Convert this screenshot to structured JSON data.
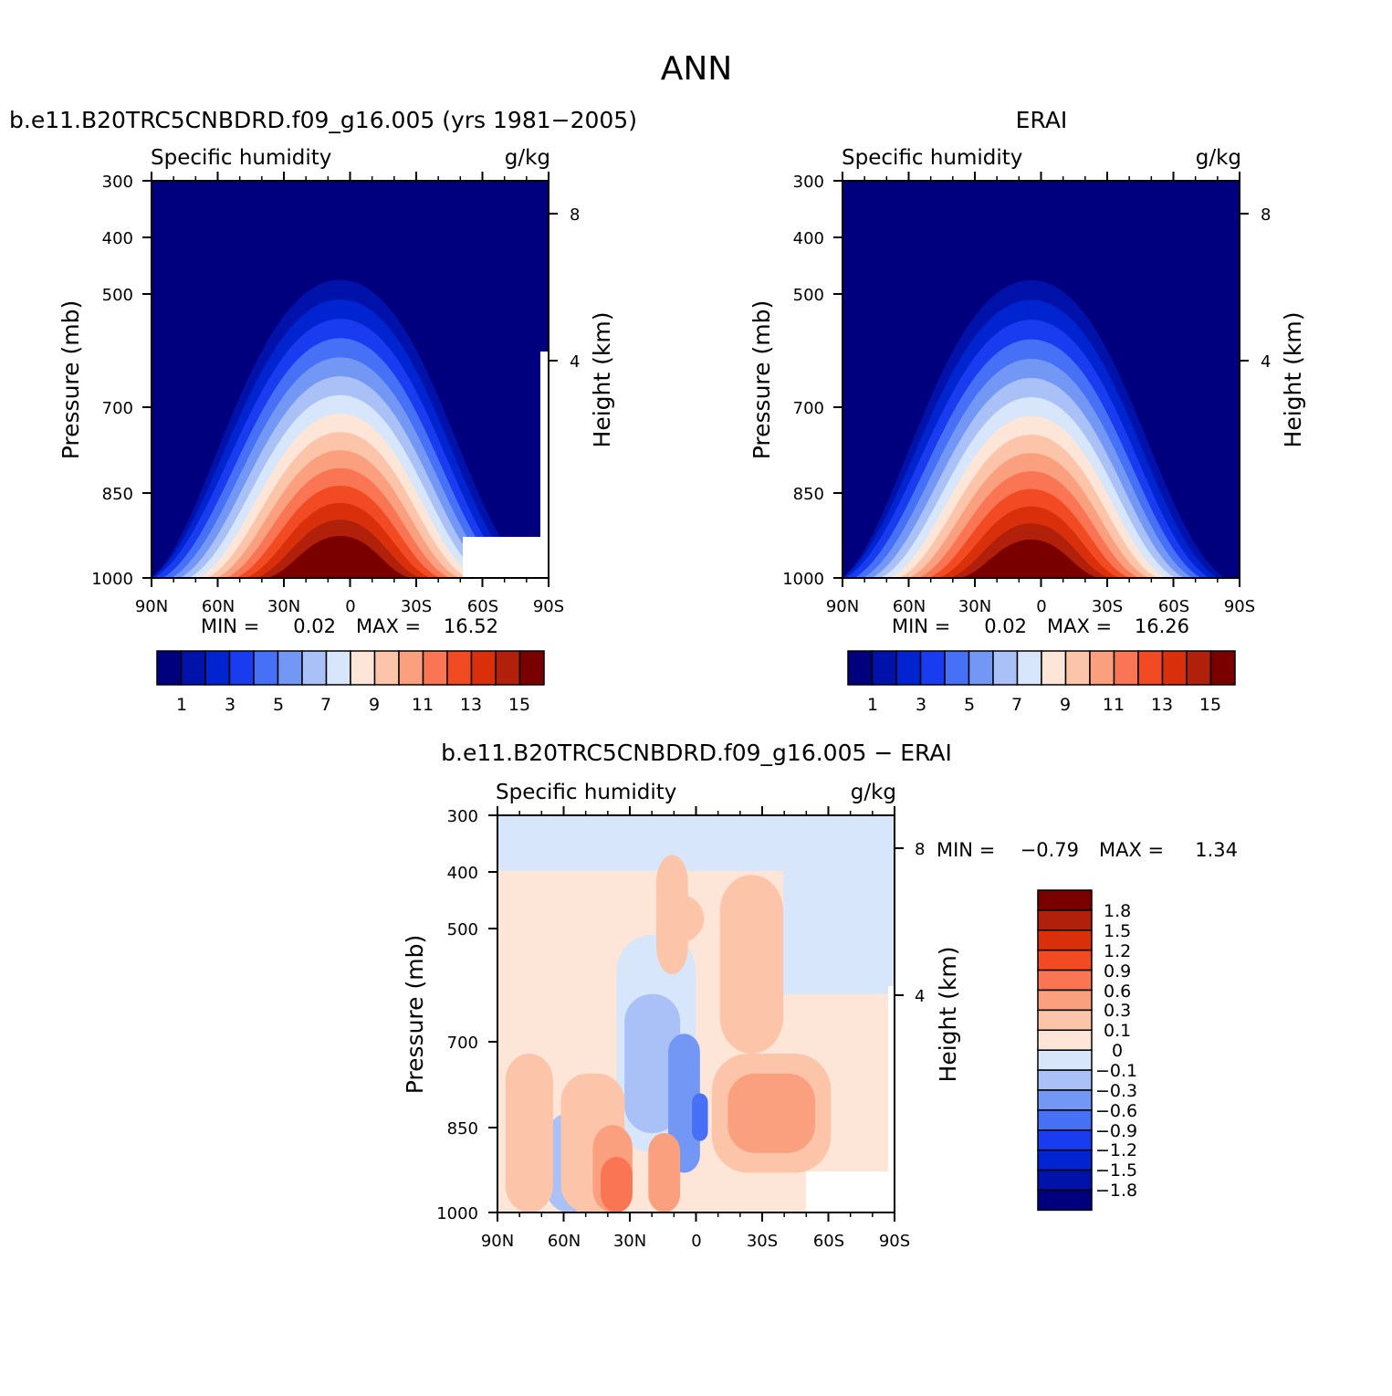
{
  "page_title": "ANN",
  "colors": {
    "abs_scale": [
      "#00007f",
      "#0012aa",
      "#0025d0",
      "#1a3cf0",
      "#4670f5",
      "#7397f5",
      "#a9c1f7",
      "#d7e6fa",
      "#fde6d8",
      "#fcc5aa",
      "#fba07f",
      "#f97553",
      "#f24a22",
      "#da2f0b",
      "#b0200a",
      "#7a0000"
    ],
    "diff_scale": [
      "#00007f",
      "#0012aa",
      "#0025d0",
      "#1a3cf0",
      "#4670f5",
      "#7397f5",
      "#a9c1f7",
      "#d7e6fa",
      "#fde6d8",
      "#fcc5aa",
      "#fba07f",
      "#f97553",
      "#f24a22",
      "#da2f0b",
      "#b0200a",
      "#7a0000"
    ]
  },
  "chart_data": [
    {
      "type": "heatmap",
      "title": "b.e11.B20TRC5CNBDRD.f09_g16.005 (yrs 1981−2005)",
      "left_label": "Specific humidity",
      "right_label": "g/kg",
      "ylabel": "Pressure (mb)",
      "y2label": "Height (km)",
      "x_ticks": [
        "90N",
        "60N",
        "30N",
        "0",
        "30S",
        "60S",
        "90S"
      ],
      "y_ticks": [
        "300",
        "400",
        "500",
        "700",
        "850",
        "1000"
      ],
      "y2_ticks": [
        "8",
        "4"
      ],
      "min_label": "MIN =",
      "min_value": "0.02",
      "max_label": "MAX =",
      "max_value": "16.52",
      "peak": 16.52,
      "colorbar_labels": [
        "1",
        "3",
        "5",
        "7",
        "9",
        "11",
        "13",
        "15"
      ]
    },
    {
      "type": "heatmap",
      "title": "ERAI",
      "left_label": "Specific humidity",
      "right_label": "g/kg",
      "ylabel": "Pressure (mb)",
      "y2label": "Height (km)",
      "x_ticks": [
        "90N",
        "60N",
        "30N",
        "0",
        "30S",
        "60S",
        "90S"
      ],
      "y_ticks": [
        "300",
        "400",
        "500",
        "700",
        "850",
        "1000"
      ],
      "y2_ticks": [
        "8",
        "4"
      ],
      "min_label": "MIN =",
      "min_value": "0.02",
      "max_label": "MAX =",
      "max_value": "16.26",
      "peak": 16.26,
      "colorbar_labels": [
        "1",
        "3",
        "5",
        "7",
        "9",
        "11",
        "13",
        "15"
      ]
    },
    {
      "type": "heatmap",
      "title": "b.e11.B20TRC5CNBDRD.f09_g16.005 − ERAI",
      "left_label": "Specific humidity",
      "right_label": "g/kg",
      "ylabel": "Pressure (mb)",
      "y2label": "Height (km)",
      "x_ticks": [
        "90N",
        "60N",
        "30N",
        "0",
        "30S",
        "60S",
        "90S"
      ],
      "y_ticks": [
        "300",
        "400",
        "500",
        "700",
        "850",
        "1000"
      ],
      "y2_ticks": [
        "8",
        "4"
      ],
      "min_label": "MIN =",
      "min_value": "−0.79",
      "max_label": "MAX =",
      "max_value": "1.34",
      "colorbar_labels": [
        "1.8",
        "1.5",
        "1.2",
        "0.9",
        "0.6",
        "0.3",
        "0.1",
        "0",
        "−0.1",
        "−0.3",
        "−0.6",
        "−0.9",
        "−1.2",
        "−1.5",
        "−1.8"
      ]
    }
  ]
}
